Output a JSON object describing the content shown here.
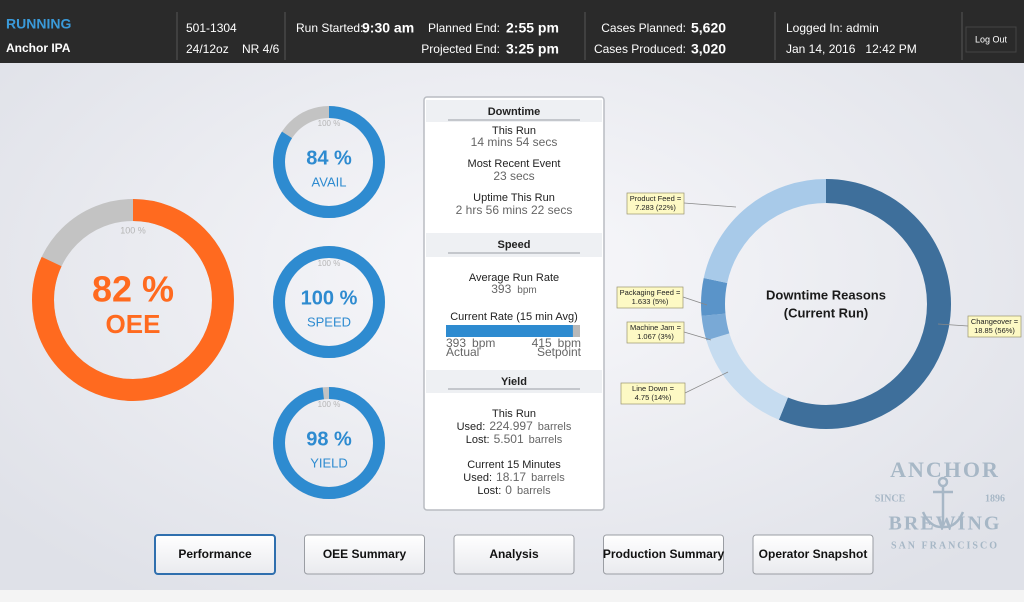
{
  "header": {
    "status": "RUNNING",
    "product": "Anchor IPA",
    "run_id": "501-1304",
    "package": "24/12oz",
    "nr": "NR 4/6",
    "run_started": {
      "label": "Run Started:",
      "value": "9:30 am"
    },
    "planned_end": {
      "label": "Planned End:",
      "value": "2:55 pm"
    },
    "projected_end": {
      "label": "Projected End:",
      "value": "3:25 pm"
    },
    "cases_planned": {
      "label": "Cases Planned:",
      "value": "5,620"
    },
    "cases_produced": {
      "label": "Cases Produced:",
      "value": "3,020"
    },
    "logged_in": "Logged In: admin",
    "datetime": "Jan 14, 2016   12:42 PM",
    "logout": "Log Out"
  },
  "gauges": [
    {
      "name": "OEE",
      "value": 82,
      "value_label": "82 %",
      "max": {
        "value": 100,
        "label": "100 %"
      },
      "color": "#ff6a1f"
    },
    {
      "name": "AVAIL",
      "value": 84,
      "value_label": "84 %",
      "max": {
        "value": 100,
        "label": "100 %"
      },
      "color": "#2e8bd0"
    },
    {
      "name": "SPEED",
      "value": 100,
      "value_label": "100 %",
      "max": {
        "value": 100,
        "label": "100 %"
      },
      "color": "#2e8bd0"
    },
    {
      "name": "YIELD",
      "value": 98,
      "value_label": "98 %",
      "max": {
        "value": 100,
        "label": "100 %"
      },
      "color": "#2e8bd0"
    }
  ],
  "panel": {
    "downtime": {
      "title": "Downtime",
      "items": [
        {
          "label": "This Run",
          "value": "14 mins 54 secs"
        },
        {
          "label": "Most Recent Event",
          "value": "23 secs"
        },
        {
          "label": "Uptime This Run",
          "value": "2 hrs 56 mins 22 secs"
        }
      ]
    },
    "speed": {
      "title": "Speed",
      "average_label": "Average Run Rate",
      "average": 393,
      "unit": "bpm",
      "current_label": "Current Rate (15 min Avg)",
      "actual": 393,
      "actual_label": "Actual",
      "setpoint": 415,
      "setpoint_label": "Setpoint"
    },
    "yield": {
      "title": "Yield",
      "used_label": "Used:",
      "lost_label": "Lost:",
      "unit": "barrels",
      "periods": [
        {
          "title": "This Run",
          "used": 224.997,
          "lost": 5.501
        },
        {
          "title": "Current 15 Minutes",
          "used": 18.17,
          "lost": 0
        }
      ]
    }
  },
  "downtime_reasons": {
    "title": "Downtime Reasons",
    "subtitle": "(Current Run)",
    "slices": [
      {
        "label": "Changeover =",
        "value": 18.85,
        "value_label": "18.85 (56%)",
        "color": "#3e6f9b"
      },
      {
        "label": "Line Down =",
        "value": 4.75,
        "value_label": "4.75 (14%)",
        "color": "#c6dcf0"
      },
      {
        "label": "Machine Jam =",
        "value": 1.067,
        "value_label": "1.067 (3%)",
        "color": "#79a9d6"
      },
      {
        "label": "Packaging Feed =",
        "value": 1.633,
        "value_label": "1.633 (5%)",
        "color": "#5a94c9"
      },
      {
        "label": "Product Feed =",
        "value": 7.283,
        "value_label": "7.283 (22%)",
        "color": "#a8cae9"
      }
    ]
  },
  "nav": [
    "Performance",
    "OEE Summary",
    "Analysis",
    "Production Summary",
    "Operator Snapshot"
  ],
  "logo": {
    "name": "ANCHOR",
    "since": "SINCE",
    "year": "1896",
    "brewery": "BREWING",
    "city": "SAN FRANCISCO"
  }
}
